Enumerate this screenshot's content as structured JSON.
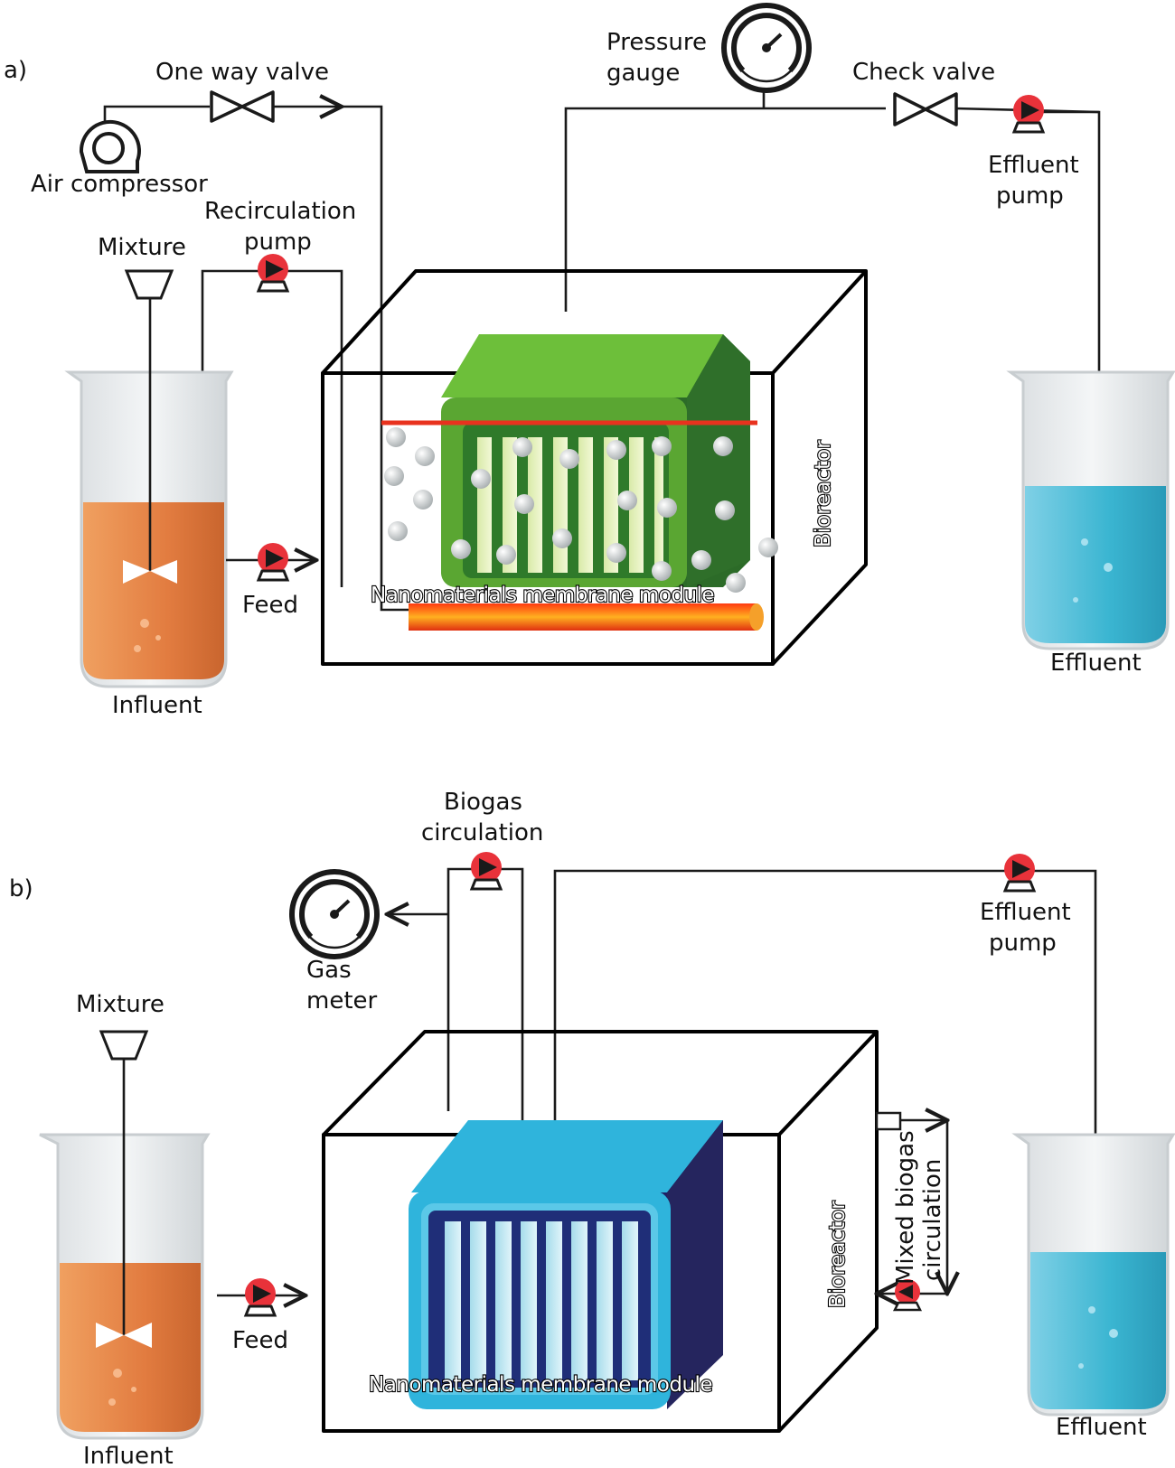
{
  "colors": {
    "influent_liquid": "#e27c40",
    "effluent_liquid": "#3ab5d1",
    "membrane_green": "#5aa632",
    "membrane_blue": "#2fb4dc",
    "pump_red": "#e8323a",
    "heater_red": "#e83018"
  },
  "panel_a": {
    "panel_label": "a)",
    "one_way_valve": "One way valve",
    "air_compressor": "Air compressor",
    "pressure_gauge": [
      "Pressure",
      "gauge"
    ],
    "check_valve": "Check valve",
    "effluent_pump": [
      "Effluent",
      "pump"
    ],
    "recirculation_pump": [
      "Recirculation",
      "pump"
    ],
    "mixture": "Mixture",
    "feed": "Feed",
    "influent": "Influent",
    "effluent": "Effluent",
    "bioreactor": "Bioreactor",
    "membrane_module": "Nanomaterials membrane module"
  },
  "panel_b": {
    "panel_label": "b)",
    "biogas_circulation": [
      "Biogas",
      "circulation"
    ],
    "gas_meter": [
      "Gas",
      "meter"
    ],
    "effluent_pump": [
      "Effluent",
      "pump"
    ],
    "mixture": "Mixture",
    "feed": "Feed",
    "influent": "Influent",
    "effluent": "Effluent",
    "bioreactor": "Bioreactor",
    "mixed_biogas_circulation": [
      "Mixed biogas",
      "circulation"
    ],
    "membrane_module": "Nanomaterials membrane module"
  },
  "icons": [
    "air-compressor-icon",
    "valve-icon",
    "pressure-gauge-icon",
    "pump-icon",
    "beaker-icon",
    "stirrer-icon",
    "membrane-module-icon",
    "heater-icon",
    "bubble-icon",
    "gas-meter-icon"
  ]
}
